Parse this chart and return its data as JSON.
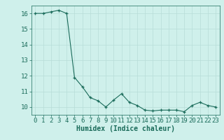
{
  "x": [
    0,
    1,
    2,
    3,
    4,
    5,
    6,
    7,
    8,
    9,
    10,
    11,
    12,
    13,
    14,
    15,
    16,
    17,
    18,
    19,
    20,
    21,
    22,
    23
  ],
  "y": [
    16.0,
    16.0,
    16.1,
    16.2,
    16.0,
    11.9,
    11.3,
    10.6,
    10.4,
    10.0,
    10.45,
    10.85,
    10.3,
    10.1,
    9.8,
    9.75,
    9.8,
    9.8,
    9.8,
    9.7,
    10.1,
    10.3,
    10.1,
    10.0
  ],
  "title": "",
  "xlabel": "Humidex (Indice chaleur)",
  "ylabel": "",
  "line_color": "#1a6b5a",
  "marker_color": "#1a6b5a",
  "bg_color": "#cff0eb",
  "grid_color": "#b8ddd8",
  "xlim": [
    -0.5,
    23.5
  ],
  "ylim": [
    9.5,
    16.5
  ],
  "yticks": [
    10,
    11,
    12,
    13,
    14,
    15,
    16
  ],
  "xticks": [
    0,
    1,
    2,
    3,
    4,
    5,
    6,
    7,
    8,
    9,
    10,
    11,
    12,
    13,
    14,
    15,
    16,
    17,
    18,
    19,
    20,
    21,
    22,
    23
  ],
  "label_fontsize": 7,
  "tick_fontsize": 6.5
}
